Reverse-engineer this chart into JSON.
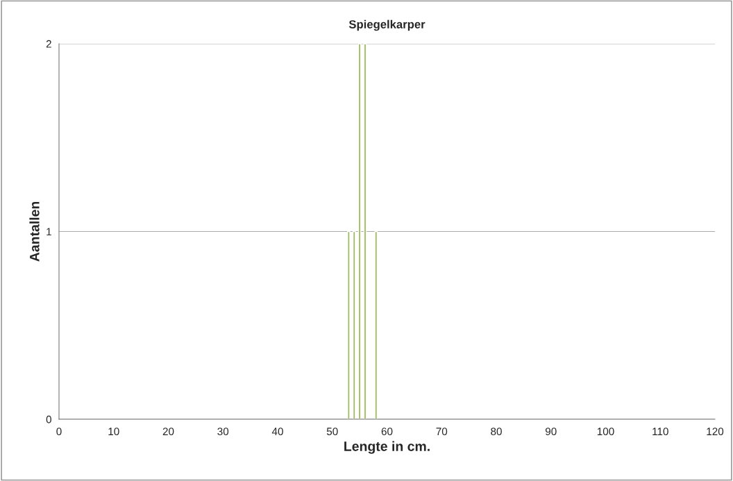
{
  "chart_data": {
    "type": "bar",
    "title": "Spiegelkarper",
    "xlabel": "Lengte in cm.",
    "ylabel": "Aantallen",
    "x": [
      53,
      54,
      55,
      56,
      58
    ],
    "series": [
      {
        "color": "#9bbb59",
        "values": [
          1,
          1,
          2,
          2,
          1
        ]
      }
    ],
    "xlim": [
      0,
      120
    ],
    "xticks": [
      0,
      10,
      20,
      30,
      40,
      50,
      60,
      70,
      80,
      90,
      100,
      110,
      120
    ],
    "ylim": [
      0,
      2
    ],
    "yticks": [
      0,
      1,
      2
    ],
    "grid": "y",
    "legend": false
  }
}
